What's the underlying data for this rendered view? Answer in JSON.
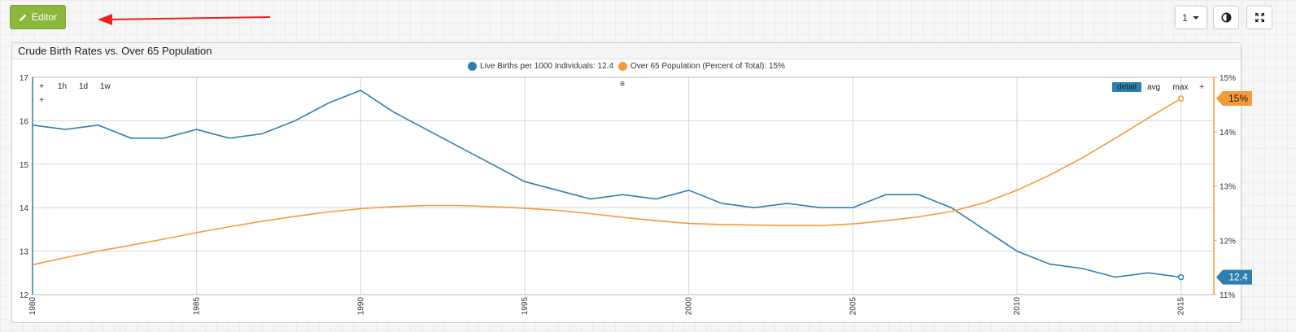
{
  "toolbar": {
    "editor_label": "Editor",
    "page_select_value": "1"
  },
  "panel": {
    "title": "Crude Birth Rates vs. Over 65 Population"
  },
  "legend": [
    {
      "label": "Live Births per 1000 Individuals: 12.4",
      "color": "#2e7fb0"
    },
    {
      "label": "Over 65 Population (Percent of Total): 15%",
      "color": "#f59a37"
    }
  ],
  "controls": {
    "zoom_in": "+",
    "zoom_out": "+",
    "ranges": [
      "1h",
      "1d",
      "1w"
    ],
    "menu": "≡",
    "modes": [
      "detail",
      "avg",
      "max"
    ],
    "active_mode": "detail",
    "add": "+"
  },
  "chart_data": {
    "type": "line",
    "x": [
      1980,
      1981,
      1982,
      1983,
      1984,
      1985,
      1986,
      1987,
      1988,
      1989,
      1990,
      1991,
      1992,
      1993,
      1994,
      1995,
      1996,
      1997,
      1998,
      1999,
      2000,
      2001,
      2002,
      2003,
      2004,
      2005,
      2006,
      2007,
      2008,
      2009,
      2010,
      2011,
      2012,
      2013,
      2014,
      2015
    ],
    "xlim": [
      1980,
      2016
    ],
    "xticks": [
      "1980",
      "1985",
      "1990",
      "1995",
      "2000",
      "2005",
      "2010",
      "2015"
    ],
    "series": [
      {
        "name": "Live Births per 1000 Individuals",
        "axis": "left",
        "color": "#2e7fb0",
        "values": [
          15.9,
          15.8,
          15.9,
          15.6,
          15.6,
          15.8,
          15.6,
          15.7,
          16.0,
          16.4,
          16.7,
          16.2,
          15.8,
          15.4,
          15.0,
          14.6,
          14.4,
          14.2,
          14.3,
          14.2,
          14.4,
          14.1,
          14.0,
          14.1,
          14.0,
          14.0,
          14.3,
          14.3,
          14.0,
          13.5,
          13.0,
          12.7,
          12.6,
          12.4,
          12.5,
          12.4
        ],
        "last_value_label": "12.4"
      },
      {
        "name": "Over 65 Population (Percent of Total)",
        "axis": "right",
        "color": "#f59a37",
        "values": [
          11.55,
          11.68,
          11.8,
          11.91,
          12.02,
          12.14,
          12.25,
          12.35,
          12.44,
          12.52,
          12.58,
          12.62,
          12.64,
          12.64,
          12.62,
          12.59,
          12.55,
          12.49,
          12.42,
          12.36,
          12.31,
          12.29,
          12.28,
          12.27,
          12.27,
          12.3,
          12.36,
          12.43,
          12.53,
          12.69,
          12.92,
          13.2,
          13.52,
          13.88,
          14.25,
          14.61
        ],
        "last_value_label": "15%"
      }
    ],
    "ylim_left": [
      12,
      17
    ],
    "yticks_left": [
      "12",
      "13",
      "14",
      "15",
      "16",
      "17"
    ],
    "ylim_right": [
      11,
      15
    ],
    "yticks_right": [
      "11%",
      "12%",
      "13%",
      "14%",
      "15%"
    ],
    "grid": true
  }
}
